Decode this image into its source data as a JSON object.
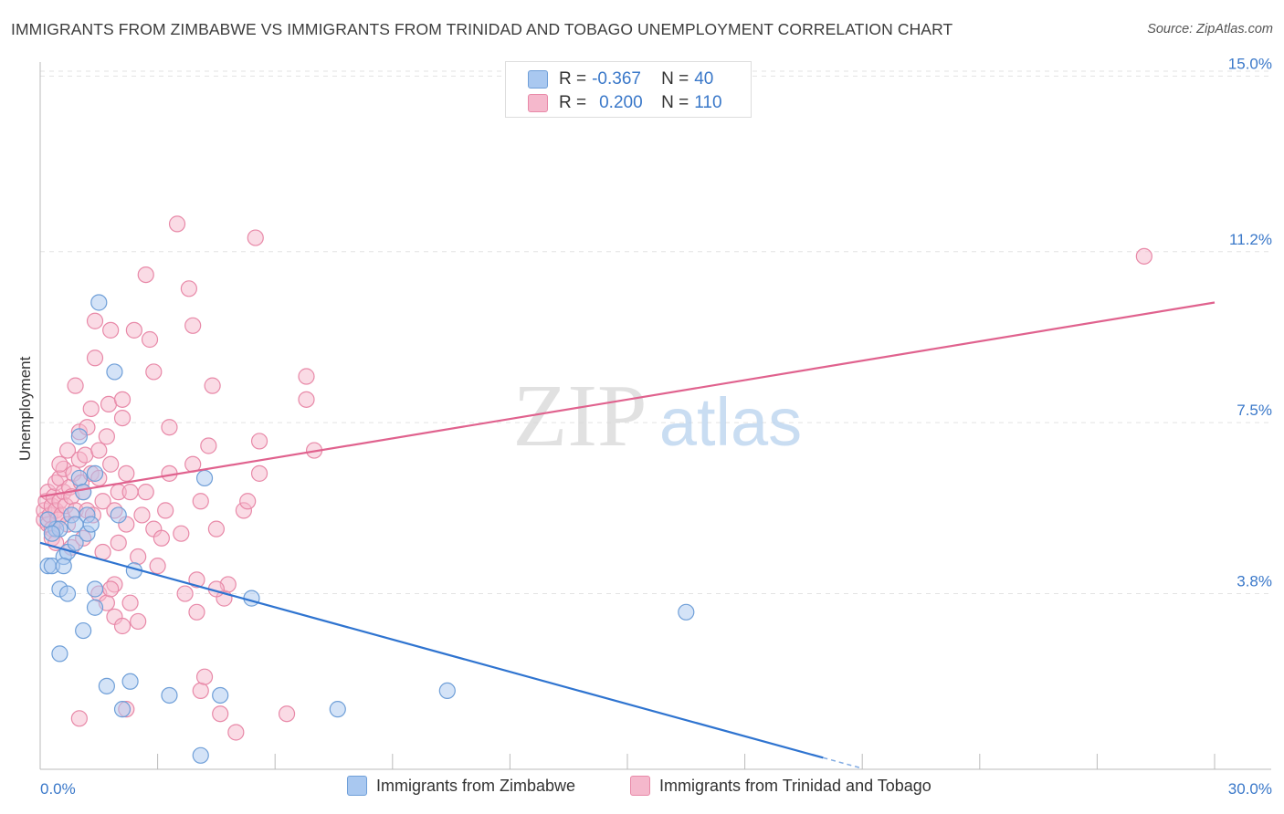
{
  "title": "IMMIGRANTS FROM ZIMBABWE VS IMMIGRANTS FROM TRINIDAD AND TOBAGO UNEMPLOYMENT CORRELATION CHART",
  "source": "Source: ZipAtlas.com",
  "watermark": {
    "zip": "ZIP",
    "atlas": "atlas"
  },
  "colors": {
    "blue_fill": "#a9c8f0",
    "blue_stroke": "#6f9fd8",
    "blue_line": "#2f74d0",
    "pink_fill": "#f5b8cc",
    "pink_stroke": "#e889a8",
    "pink_line": "#e0628e",
    "grid": "#e3e3e3",
    "axis_label": "#3a78c9"
  },
  "stats": {
    "r_label": "R =",
    "n_label": "N =",
    "series1": {
      "r": "-0.367",
      "n": "40"
    },
    "series2": {
      "r": "0.200",
      "n": "110"
    }
  },
  "chart_data": {
    "type": "scatter",
    "title": "IMMIGRANTS FROM ZIMBABWE VS IMMIGRANTS FROM TRINIDAD AND TOBAGO UNEMPLOYMENT CORRELATION CHART",
    "xlabel": "",
    "ylabel": "Unemployment",
    "xlim": [
      0,
      30
    ],
    "ylim": [
      0,
      15.5
    ],
    "x_tick_labels": [
      {
        "value": 0,
        "label": "0.0%"
      },
      {
        "value": 30,
        "label": "30.0%"
      }
    ],
    "y_tick_labels": [
      {
        "value": 3.8,
        "label": "3.8%"
      },
      {
        "value": 7.5,
        "label": "7.5%"
      },
      {
        "value": 11.2,
        "label": "11.2%"
      },
      {
        "value": 15.0,
        "label": "15.0%"
      }
    ],
    "x_minor_ticks": [
      0,
      3,
      6,
      9,
      12,
      15,
      18,
      21,
      24,
      27,
      30
    ],
    "legend_position": "bottom",
    "series": [
      {
        "name": "Immigrants from Zimbabwe",
        "color": "blue",
        "r": -0.367,
        "n": 40,
        "trend": {
          "x1": 0,
          "y1": 4.9,
          "x2": 20.0,
          "y2": 0.25,
          "dashed_to_x": 21.0,
          "dashed_to_y": 0.02
        },
        "points": [
          [
            0.2,
            4.4
          ],
          [
            0.3,
            4.4
          ],
          [
            0.4,
            5.2
          ],
          [
            0.5,
            5.2
          ],
          [
            0.6,
            4.6
          ],
          [
            0.5,
            3.9
          ],
          [
            0.5,
            2.5
          ],
          [
            0.7,
            3.8
          ],
          [
            0.7,
            4.7
          ],
          [
            0.8,
            5.5
          ],
          [
            0.9,
            5.3
          ],
          [
            0.9,
            4.9
          ],
          [
            1.0,
            6.3
          ],
          [
            1.0,
            7.2
          ],
          [
            1.1,
            6.0
          ],
          [
            1.1,
            3.0
          ],
          [
            1.2,
            5.5
          ],
          [
            1.2,
            5.1
          ],
          [
            1.3,
            5.3
          ],
          [
            1.4,
            3.5
          ],
          [
            1.4,
            3.9
          ],
          [
            1.4,
            6.4
          ],
          [
            1.5,
            10.1
          ],
          [
            1.7,
            1.8
          ],
          [
            1.9,
            8.6
          ],
          [
            2.0,
            5.5
          ],
          [
            2.1,
            1.3
          ],
          [
            2.3,
            1.9
          ],
          [
            2.4,
            4.3
          ],
          [
            3.3,
            1.6
          ],
          [
            4.1,
            0.3
          ],
          [
            4.2,
            6.3
          ],
          [
            4.6,
            1.6
          ],
          [
            5.4,
            3.7
          ],
          [
            7.6,
            1.3
          ],
          [
            10.4,
            1.7
          ],
          [
            16.5,
            3.4
          ],
          [
            0.2,
            5.4
          ],
          [
            0.3,
            5.1
          ],
          [
            0.6,
            4.4
          ]
        ]
      },
      {
        "name": "Immigrants from Trinidad and Tobago",
        "color": "pink",
        "r": 0.2,
        "n": 110,
        "trend": {
          "x1": 0,
          "y1": 5.9,
          "x2": 30.0,
          "y2": 10.1
        },
        "points": [
          [
            0.1,
            5.4
          ],
          [
            0.1,
            5.6
          ],
          [
            0.15,
            5.8
          ],
          [
            0.2,
            5.3
          ],
          [
            0.2,
            6.0
          ],
          [
            0.25,
            5.5
          ],
          [
            0.3,
            5.7
          ],
          [
            0.3,
            5.2
          ],
          [
            0.35,
            5.9
          ],
          [
            0.4,
            5.6
          ],
          [
            0.4,
            6.2
          ],
          [
            0.45,
            5.4
          ],
          [
            0.5,
            5.8
          ],
          [
            0.5,
            6.3
          ],
          [
            0.55,
            5.5
          ],
          [
            0.6,
            6.0
          ],
          [
            0.6,
            6.5
          ],
          [
            0.65,
            5.7
          ],
          [
            0.7,
            6.9
          ],
          [
            0.7,
            5.3
          ],
          [
            0.75,
            6.1
          ],
          [
            0.8,
            5.9
          ],
          [
            0.8,
            4.8
          ],
          [
            0.85,
            6.4
          ],
          [
            0.9,
            5.6
          ],
          [
            0.9,
            8.3
          ],
          [
            1.0,
            6.7
          ],
          [
            1.0,
            7.3
          ],
          [
            1.05,
            6.2
          ],
          [
            1.1,
            5.0
          ],
          [
            1.1,
            6.0
          ],
          [
            1.15,
            6.8
          ],
          [
            1.2,
            5.6
          ],
          [
            1.2,
            7.4
          ],
          [
            1.3,
            6.4
          ],
          [
            1.3,
            7.8
          ],
          [
            1.35,
            5.5
          ],
          [
            1.4,
            8.9
          ],
          [
            1.4,
            9.7
          ],
          [
            1.5,
            6.3
          ],
          [
            1.5,
            6.9
          ],
          [
            1.5,
            3.8
          ],
          [
            1.6,
            5.8
          ],
          [
            1.6,
            4.7
          ],
          [
            1.7,
            3.6
          ],
          [
            1.7,
            7.2
          ],
          [
            1.75,
            7.9
          ],
          [
            1.8,
            6.6
          ],
          [
            1.8,
            9.5
          ],
          [
            1.9,
            5.6
          ],
          [
            1.9,
            3.3
          ],
          [
            1.9,
            4.0
          ],
          [
            2.0,
            6.0
          ],
          [
            2.0,
            4.9
          ],
          [
            2.1,
            7.6
          ],
          [
            2.1,
            8.0
          ],
          [
            2.1,
            3.1
          ],
          [
            2.2,
            6.4
          ],
          [
            2.2,
            5.3
          ],
          [
            2.3,
            6.0
          ],
          [
            2.3,
            3.6
          ],
          [
            2.4,
            9.5
          ],
          [
            2.5,
            4.6
          ],
          [
            2.5,
            3.2
          ],
          [
            2.6,
            5.5
          ],
          [
            2.7,
            6.0
          ],
          [
            2.7,
            10.7
          ],
          [
            2.8,
            9.3
          ],
          [
            2.9,
            8.6
          ],
          [
            2.9,
            5.2
          ],
          [
            3.0,
            4.4
          ],
          [
            3.1,
            5.0
          ],
          [
            3.2,
            5.6
          ],
          [
            3.3,
            7.4
          ],
          [
            3.3,
            6.4
          ],
          [
            3.5,
            11.8
          ],
          [
            3.6,
            5.1
          ],
          [
            3.7,
            3.8
          ],
          [
            3.8,
            10.4
          ],
          [
            3.9,
            9.6
          ],
          [
            3.9,
            6.6
          ],
          [
            4.0,
            4.1
          ],
          [
            4.0,
            3.4
          ],
          [
            4.1,
            1.7
          ],
          [
            4.1,
            5.8
          ],
          [
            4.2,
            2.0
          ],
          [
            4.3,
            7.0
          ],
          [
            4.4,
            8.3
          ],
          [
            4.5,
            5.2
          ],
          [
            4.6,
            1.2
          ],
          [
            4.7,
            3.7
          ],
          [
            4.8,
            4.0
          ],
          [
            5.0,
            0.8
          ],
          [
            5.2,
            5.6
          ],
          [
            5.3,
            5.8
          ],
          [
            5.5,
            11.5
          ],
          [
            5.6,
            7.1
          ],
          [
            5.6,
            6.4
          ],
          [
            6.3,
            1.2
          ],
          [
            6.8,
            8.5
          ],
          [
            6.8,
            8.0
          ],
          [
            7.0,
            6.9
          ],
          [
            0.3,
            5.0
          ],
          [
            0.4,
            4.9
          ],
          [
            0.5,
            6.6
          ],
          [
            1.0,
            1.1
          ],
          [
            1.8,
            3.9
          ],
          [
            2.2,
            1.3
          ],
          [
            4.5,
            3.9
          ],
          [
            28.2,
            11.1
          ]
        ]
      }
    ]
  },
  "legend": {
    "series1_label": "Immigrants from Zimbabwe",
    "series2_label": "Immigrants from Trinidad and Tobago"
  }
}
